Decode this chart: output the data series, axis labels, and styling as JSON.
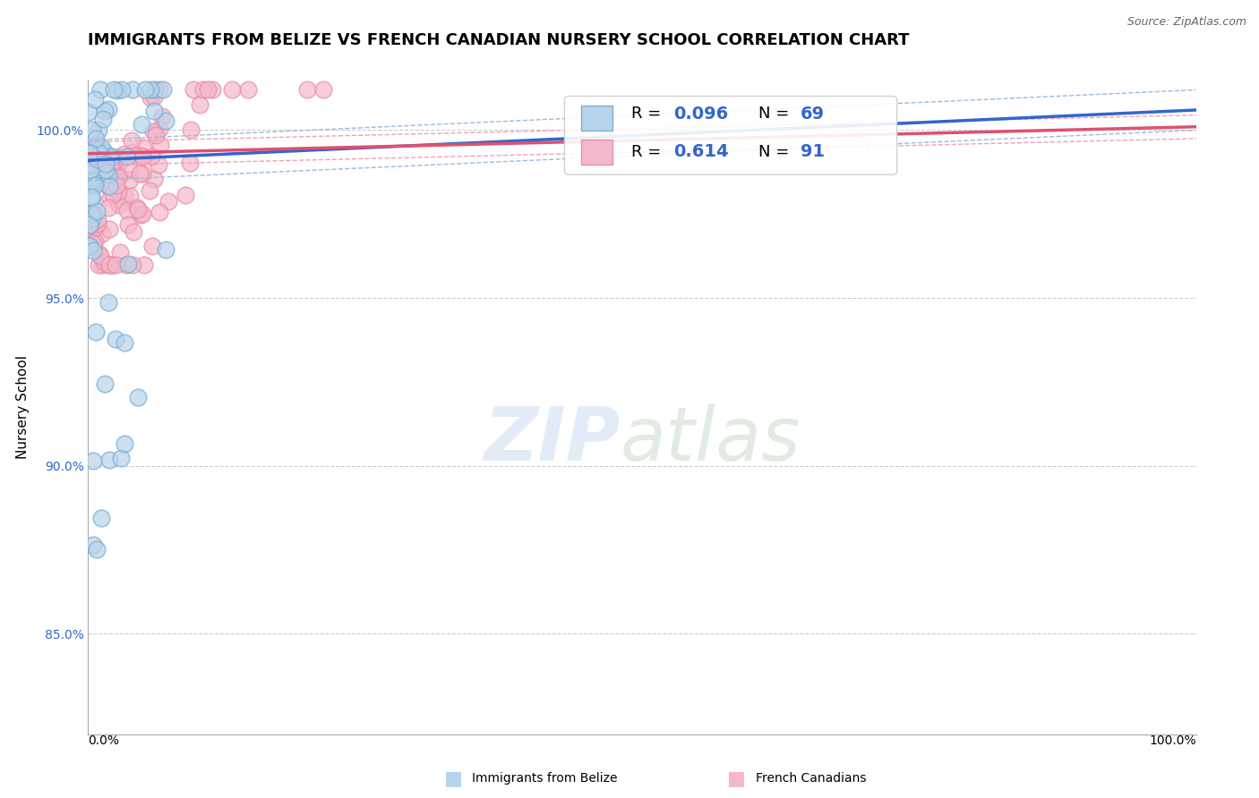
{
  "title": "IMMIGRANTS FROM BELIZE VS FRENCH CANADIAN NURSERY SCHOOL CORRELATION CHART",
  "source": "Source: ZipAtlas.com",
  "ylabel": "Nursery School",
  "series": [
    {
      "name": "Immigrants from Belize",
      "R": 0.096,
      "N": 69,
      "edge_color": "#7bafd4",
      "face_color": "#b8d4ea",
      "trend_color": "#3366cc",
      "band_color": "#99bbdd"
    },
    {
      "name": "French Canadians",
      "R": 0.614,
      "N": 91,
      "edge_color": "#e88fa8",
      "face_color": "#f4b8cb",
      "trend_color": "#e05070",
      "band_color": "#f0a0b8"
    }
  ],
  "xlim": [
    0.0,
    1.0
  ],
  "ylim": [
    82.0,
    101.5
  ],
  "background_color": "#ffffff",
  "grid_color": "#cccccc",
  "seed_blue": 42,
  "seed_pink": 123,
  "blue_slope": 1.5,
  "blue_intercept": 99.1,
  "blue_band": 0.6,
  "pink_slope": 0.8,
  "pink_intercept": 99.3,
  "pink_band": 0.35
}
